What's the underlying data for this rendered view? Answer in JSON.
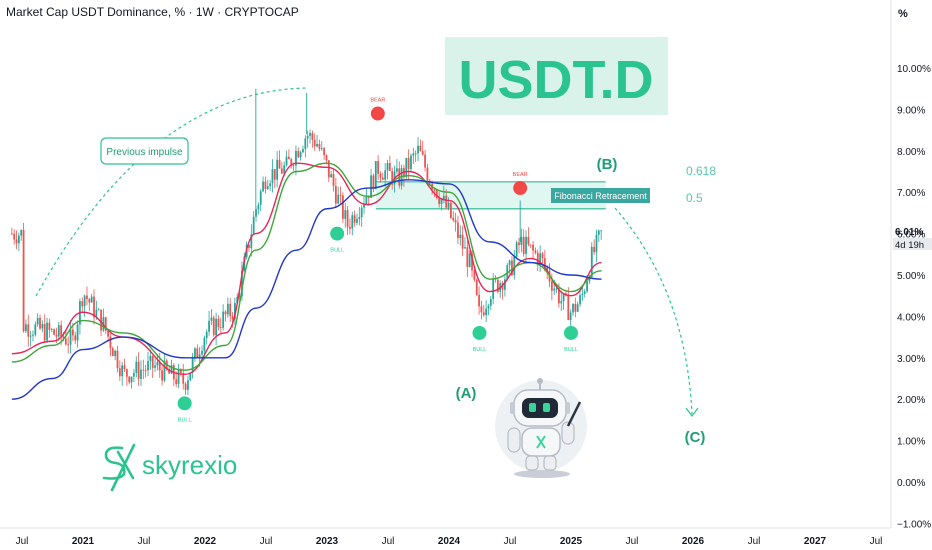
{
  "header": {
    "title": "Market Cap USDT Dominance, % · 1W · CRYPTOCAP",
    "unit": "%"
  },
  "price_badge": {
    "value": "6.01%",
    "countdown": "4d 19h"
  },
  "brand": {
    "name": "skyrexio",
    "mark": "SX"
  },
  "colors": {
    "accent": "#2bc490",
    "up": "#26a69a",
    "down": "#ef5350",
    "bear_dot": "#f24848",
    "bull_dot": "#2dcf94",
    "ma_fast": "#e7265a",
    "ma_mid": "#3fa63a",
    "ma_slow": "#2238c8",
    "fib_fill": "#d6f3ec",
    "fib_stroke": "#56c7a8"
  },
  "annotations": {
    "ticker_box": "USDT.D",
    "previous_impulse": "Previous impulse",
    "fib_label": "Fibonacci Retracement",
    "fib_0618": "0.618",
    "fib_05": "0.5",
    "wave_a": "(A)",
    "wave_b": "(B)",
    "wave_c": "(C)",
    "bear": "BEAR",
    "bull": "BULL"
  },
  "chart_data": {
    "type": "candlestick",
    "title": "Market Cap USDT Dominance, % · 1W · CRYPTOCAP",
    "x_axis": {
      "ticks": [
        "Jul",
        "2021",
        "Jul",
        "2022",
        "Jul",
        "2023",
        "Jul",
        "2024",
        "Jul",
        "2025",
        "Jul",
        "2026",
        "Jul",
        "2027",
        "Jul"
      ],
      "range": [
        "2020-06",
        "2027-08"
      ]
    },
    "y_axis": {
      "ticks": [
        "10.00%",
        "9.00%",
        "8.00%",
        "7.00%",
        "6.00%",
        "5.00%",
        "4.00%",
        "3.00%",
        "2.00%",
        "1.00%",
        "0.00%",
        "−1.00%"
      ],
      "range": [
        -1,
        11
      ],
      "position": "right"
    },
    "last_value": 6.01,
    "price_path": [
      [
        "2020-07",
        3.8
      ],
      [
        "2020-10",
        3.6
      ],
      [
        "2020-12",
        3.4
      ],
      [
        "2021-01",
        4.6
      ],
      [
        "2021-03",
        3.8
      ],
      [
        "2021-05",
        2.6
      ],
      [
        "2021-08",
        2.8
      ],
      [
        "2021-11",
        2.4
      ],
      [
        "2022-01",
        3.6
      ],
      [
        "2022-04",
        4.2
      ],
      [
        "2022-06",
        6.6
      ],
      [
        "2022-07",
        7.4
      ],
      [
        "2022-09",
        7.6
      ],
      [
        "2022-11",
        8.4
      ],
      [
        "2022-12",
        8.2
      ],
      [
        "2023-01",
        7.6
      ],
      [
        "2023-03",
        6.2
      ],
      [
        "2023-05",
        7.0
      ],
      [
        "2023-06",
        7.6
      ],
      [
        "2023-08",
        7.3
      ],
      [
        "2023-10",
        8.0
      ],
      [
        "2023-11",
        7.4
      ],
      [
        "2024-01",
        6.5
      ],
      [
        "2024-03",
        5.3
      ],
      [
        "2024-04",
        4.0
      ],
      [
        "2024-05",
        4.6
      ],
      [
        "2024-07",
        5.1
      ],
      [
        "2024-08",
        5.8
      ],
      [
        "2024-10",
        5.4
      ],
      [
        "2024-12",
        4.4
      ],
      [
        "2025-01",
        4.1
      ],
      [
        "2025-02",
        4.4
      ],
      [
        "2025-03",
        5.4
      ],
      [
        "2025-04",
        6.0
      ]
    ],
    "moving_averages": [
      {
        "color": "#e7265a",
        "points": [
          [
            "2020-06",
            3.1
          ],
          [
            "2020-10",
            3.4
          ],
          [
            "2021-01",
            4.1
          ],
          [
            "2021-05",
            3.5
          ],
          [
            "2021-11",
            2.6
          ],
          [
            "2022-03",
            3.6
          ],
          [
            "2022-06",
            6.0
          ],
          [
            "2022-10",
            7.7
          ],
          [
            "2023-01",
            7.6
          ],
          [
            "2023-05",
            6.7
          ],
          [
            "2023-09",
            7.5
          ],
          [
            "2024-01",
            6.8
          ],
          [
            "2024-05",
            4.6
          ],
          [
            "2024-09",
            5.4
          ],
          [
            "2025-01",
            4.5
          ],
          [
            "2025-04",
            5.3
          ]
        ]
      },
      {
        "color": "#3fa63a",
        "points": [
          [
            "2020-06",
            2.9
          ],
          [
            "2020-10",
            3.3
          ],
          [
            "2021-01",
            3.9
          ],
          [
            "2021-05",
            3.6
          ],
          [
            "2021-11",
            2.7
          ],
          [
            "2022-03",
            3.3
          ],
          [
            "2022-06",
            5.6
          ],
          [
            "2022-10",
            7.5
          ],
          [
            "2023-01",
            7.7
          ],
          [
            "2023-05",
            6.9
          ],
          [
            "2023-09",
            7.4
          ],
          [
            "2024-01",
            7.0
          ],
          [
            "2024-05",
            4.9
          ],
          [
            "2024-09",
            5.3
          ],
          [
            "2025-01",
            4.6
          ],
          [
            "2025-04",
            5.1
          ]
        ]
      },
      {
        "color": "#2238c8",
        "points": [
          [
            "2020-06",
            2.0
          ],
          [
            "2020-10",
            2.5
          ],
          [
            "2021-01",
            3.2
          ],
          [
            "2021-05",
            3.5
          ],
          [
            "2021-11",
            3.0
          ],
          [
            "2022-03",
            3.0
          ],
          [
            "2022-06",
            4.2
          ],
          [
            "2022-10",
            5.6
          ],
          [
            "2023-01",
            6.6
          ],
          [
            "2023-05",
            7.1
          ],
          [
            "2023-09",
            7.3
          ],
          [
            "2024-01",
            7.2
          ],
          [
            "2024-05",
            5.8
          ],
          [
            "2024-09",
            5.3
          ],
          [
            "2025-01",
            5.0
          ],
          [
            "2025-04",
            4.9
          ]
        ]
      }
    ],
    "fib_levels": [
      {
        "label": "0.618",
        "value": 7.25
      },
      {
        "label": "0.5",
        "value": 6.6
      }
    ],
    "fib_range_x": [
      "2023-06",
      "2025-05"
    ],
    "markers": [
      {
        "type": "BEAR",
        "x": "2023-06",
        "y": 8.9
      },
      {
        "type": "BEAR",
        "x": "2024-08",
        "y": 7.1
      },
      {
        "type": "BULL",
        "x": "2021-11",
        "y": 1.9
      },
      {
        "type": "BULL",
        "x": "2023-02",
        "y": 6.0
      },
      {
        "type": "BULL",
        "x": "2024-04",
        "y": 3.6
      },
      {
        "type": "BULL",
        "x": "2025-01",
        "y": 3.6
      }
    ],
    "wave_labels": [
      {
        "label": "(A)",
        "x": "2024-06",
        "y": 2.3
      },
      {
        "label": "(B)",
        "x": "2025-05",
        "y": 7.8
      },
      {
        "label": "(C)",
        "x": "2025-11",
        "y": 0.9
      }
    ],
    "legend": "none",
    "grid": false
  }
}
